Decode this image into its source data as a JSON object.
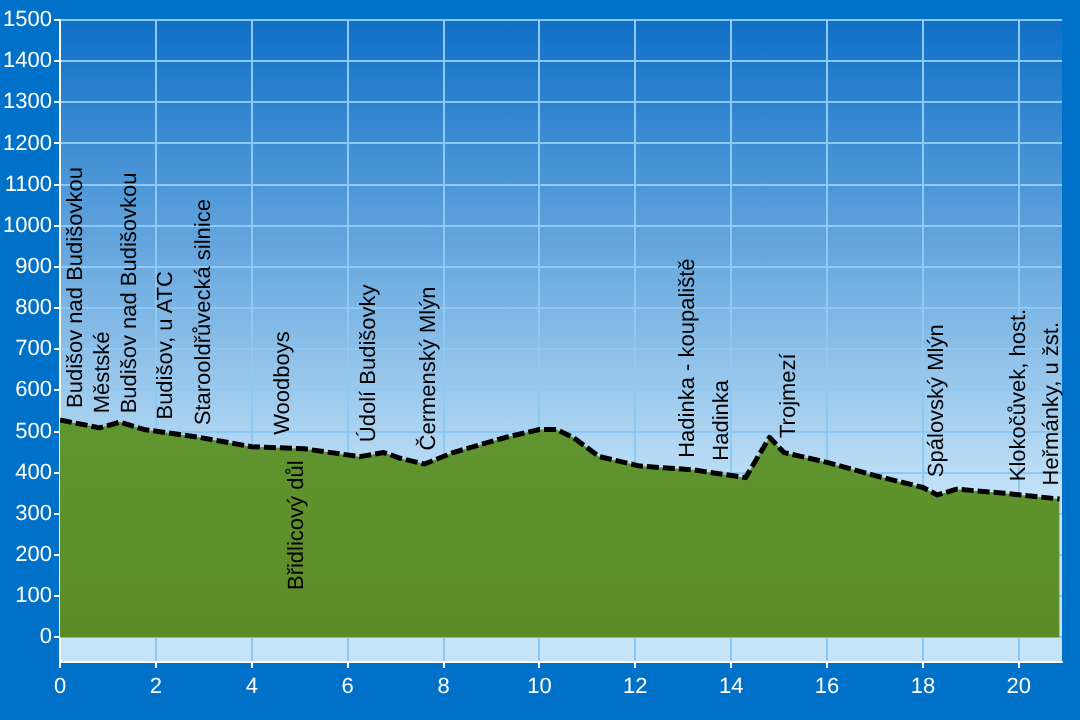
{
  "chart_data": {
    "type": "area",
    "x": [
      0,
      0.83,
      1.25,
      1.75,
      2.9,
      4.0,
      5.1,
      6.25,
      6.75,
      7.1,
      7.6,
      8.2,
      9.3,
      10.0,
      10.35,
      10.7,
      11.25,
      12.1,
      13.2,
      14.3,
      14.8,
      15.1,
      16.0,
      17.0,
      18.0,
      18.3,
      18.7,
      19.7,
      20.85
    ],
    "series": [
      {
        "color": "#6aa842",
        "values": [
          528,
          509,
          523,
          505,
          486,
          463,
          458,
          439,
          449,
          435,
          421,
          449,
          486,
          505,
          505,
          486,
          439,
          416,
          407,
          388,
          486,
          449,
          425,
          393,
          364,
          346,
          360,
          350,
          336
        ]
      }
    ],
    "xlim": [
      0,
      20.9
    ],
    "xticks": [
      0,
      2,
      4,
      6,
      8,
      10,
      12,
      14,
      16,
      18,
      20
    ],
    "ylim": [
      -60,
      1500
    ],
    "yticks": [
      0,
      100,
      200,
      300,
      400,
      500,
      600,
      700,
      800,
      900,
      1000,
      1100,
      1200,
      1300,
      1400,
      1500
    ],
    "grid": true,
    "legend": false,
    "line_style": "dashed",
    "annotations": [
      {
        "text": "Budišov nad Budišovkou",
        "x": 0.33,
        "y": 528
      },
      {
        "text": "Městské",
        "x": 0.9,
        "y": 515
      },
      {
        "text": "Budišov nad Budišovkou",
        "x": 1.45,
        "y": 515
      },
      {
        "text": "Budišov, u ATC",
        "x": 2.2,
        "y": 500
      },
      {
        "text": "Starooldřůvecká silnice",
        "x": 3.0,
        "y": 486
      },
      {
        "text": "Woodboys",
        "x": 4.65,
        "y": 463
      },
      {
        "text": "Břidlicový důl",
        "x": 4.95,
        "y": 459
      },
      {
        "text": "Údolí Budišovky",
        "x": 6.45,
        "y": 445
      },
      {
        "text": "Čermenský Mlýn",
        "x": 7.7,
        "y": 425
      },
      {
        "text": "Hadinka - koupaliště",
        "x": 13.1,
        "y": 407
      },
      {
        "text": "Hadinka",
        "x": 13.8,
        "y": 400
      },
      {
        "text": "Trojmezí",
        "x": 15.2,
        "y": 455
      },
      {
        "text": "Spálovský Mlýn",
        "x": 18.3,
        "y": 360
      },
      {
        "text": "Klokočůvek, host.",
        "x": 20.0,
        "y": 350
      },
      {
        "text": "Heřmánky, u žst.",
        "x": 20.7,
        "y": 340
      }
    ]
  }
}
